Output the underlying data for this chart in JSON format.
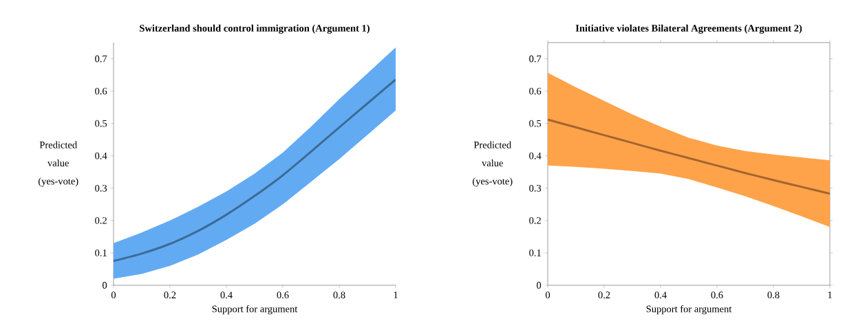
{
  "chart_data": [
    {
      "type": "line",
      "title": "Switzerland should control immigration (Argument 1)",
      "xlabel": "Support for argument",
      "ylabel": "Predicted value (yes-vote)",
      "xlim": [
        0,
        1
      ],
      "ylim": [
        0,
        0.75
      ],
      "xticks": [
        0,
        0.2,
        0.4,
        0.6,
        0.8,
        1
      ],
      "yticks": [
        0,
        0.1,
        0.2,
        0.3,
        0.4,
        0.5,
        0.6,
        0.7
      ],
      "x": [
        0,
        0.1,
        0.2,
        0.3,
        0.4,
        0.5,
        0.6,
        0.7,
        0.8,
        0.9,
        1
      ],
      "series": [
        {
          "color": "#3d6a96",
          "values": [
            0.075,
            0.098,
            0.128,
            0.168,
            0.218,
            0.276,
            0.34,
            0.413,
            0.488,
            0.562,
            0.636
          ],
          "lower": [
            0.02,
            0.035,
            0.06,
            0.095,
            0.14,
            0.19,
            0.25,
            0.32,
            0.39,
            0.465,
            0.54
          ],
          "upper": [
            0.13,
            0.163,
            0.2,
            0.243,
            0.29,
            0.345,
            0.41,
            0.49,
            0.575,
            0.655,
            0.735
          ]
        }
      ]
    },
    {
      "type": "line",
      "title": "Initiative violates Bilateral Agreements (Argument 2)",
      "xlabel": "Support for argument",
      "ylabel": "Predicted value (yes-vote)",
      "xlim": [
        0,
        1
      ],
      "ylim": [
        0,
        0.75
      ],
      "xticks": [
        0,
        0.2,
        0.4,
        0.6,
        0.8,
        1
      ],
      "yticks": [
        0,
        0.1,
        0.2,
        0.3,
        0.4,
        0.5,
        0.6,
        0.7
      ],
      "x": [
        0,
        0.1,
        0.2,
        0.3,
        0.4,
        0.5,
        0.6,
        0.7,
        0.8,
        0.9,
        1
      ],
      "series": [
        {
          "color": "#a4652e",
          "values": [
            0.512,
            0.488,
            0.464,
            0.44,
            0.416,
            0.393,
            0.37,
            0.347,
            0.325,
            0.304,
            0.283
          ],
          "lower": [
            0.37,
            0.366,
            0.36,
            0.353,
            0.345,
            0.328,
            0.302,
            0.275,
            0.245,
            0.213,
            0.18
          ],
          "upper": [
            0.657,
            0.612,
            0.57,
            0.528,
            0.49,
            0.456,
            0.432,
            0.415,
            0.404,
            0.395,
            0.386
          ]
        }
      ]
    }
  ]
}
